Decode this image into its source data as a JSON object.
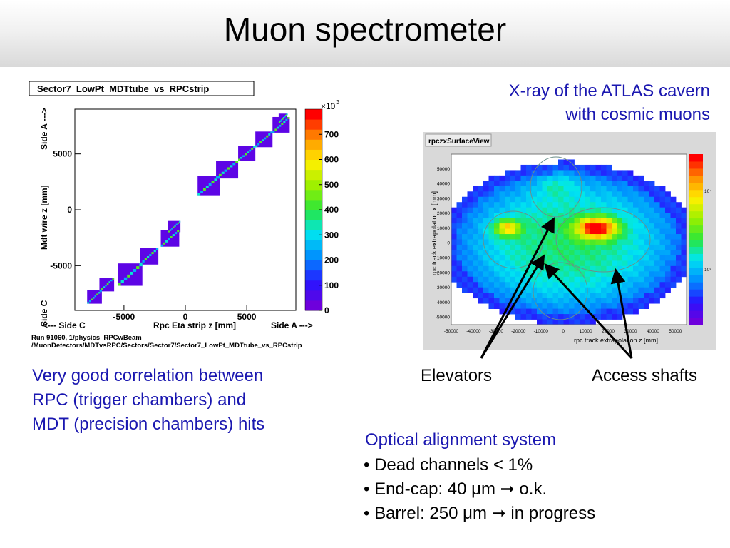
{
  "slide": {
    "title": "Muon spectrometer",
    "xray_caption": [
      "X-ray of the ATLAS cavern",
      "with cosmic muons"
    ],
    "correlation_text": [
      "Very good correlation between",
      "RPC (trigger chambers) and",
      "MDT (precision chambers) hits"
    ],
    "label_elevators": "Elevators",
    "label_access_shafts": "Access shafts",
    "optical_title": "Optical alignment system",
    "bullets": [
      {
        "text": "• Dead channels < 1%"
      },
      {
        "text": "• End-cap: 40 μm",
        "arrow": "➞",
        "after": " o.k."
      },
      {
        "text": "• Barrel: 250 μm",
        "arrow": "➞",
        "after": " in progress"
      }
    ]
  },
  "chart_data": [
    {
      "type": "heatmap",
      "title": "Sector7_LowPt_MDTtube_vs_RPCstrip",
      "xlabel": "Rpc Eta strip z [mm]",
      "ylabel": "Mdt wire z [mm]",
      "x_side_left": "<--- Side C",
      "x_side_right": "Side A --->",
      "y_side_top": "Side A --->",
      "y_side_bottom": "Side C",
      "x_ticks": [
        "-5000",
        "0",
        "5000"
      ],
      "x_tick_values": [
        -5000,
        0,
        5000
      ],
      "y_ticks": [
        "5000",
        "0",
        "-5000"
      ],
      "y_tick_values": [
        5000,
        0,
        -5000
      ],
      "xlim": [
        -9000,
        9000
      ],
      "ylim": [
        -9000,
        9000
      ],
      "colorbar_ticks": [
        "0",
        "100",
        "200",
        "300",
        "400",
        "500",
        "600",
        "700"
      ],
      "colorbar_values": [
        0,
        100,
        200,
        300,
        400,
        500,
        600,
        700
      ],
      "colorbar_max": 800,
      "colorbar_multiplier": "×10",
      "colorbar_exponent": "3",
      "footer": [
        "Run 91060, 1/physics_RPCwBeam",
        "/MuonDetectors/MDTvsRPC/Sectors/Sector7/Sector7_LowPt_MDTtube_vs_RPCstrip"
      ],
      "blocks": [
        {
          "x": [
            -8000,
            -6800
          ],
          "y": [
            -8400,
            -7200
          ]
        },
        {
          "x": [
            -7000,
            -5800
          ],
          "y": [
            -7300,
            -6100
          ]
        },
        {
          "x": [
            -5500,
            -3500
          ],
          "y": [
            -6800,
            -4800
          ]
        },
        {
          "x": [
            -3700,
            -2200
          ],
          "y": [
            -4900,
            -3400
          ]
        },
        {
          "x": [
            -2000,
            -500
          ],
          "y": [
            -3300,
            -1800
          ]
        },
        {
          "x": [
            -1400,
            -400
          ],
          "y": [
            -2000,
            -1000
          ]
        },
        {
          "x": [
            1000,
            2800
          ],
          "y": [
            1300,
            3000
          ]
        },
        {
          "x": [
            2500,
            4300
          ],
          "y": [
            2800,
            4400
          ]
        },
        {
          "x": [
            4300,
            5700
          ],
          "y": [
            4400,
            5700
          ]
        },
        {
          "x": [
            5700,
            7100
          ],
          "y": [
            5600,
            7000
          ]
        },
        {
          "x": [
            7100,
            8500
          ],
          "y": [
            6900,
            8300
          ]
        },
        {
          "x": [
            7600,
            8300
          ],
          "y": [
            7800,
            8600
          ]
        }
      ]
    },
    {
      "type": "heatmap",
      "title": "rpczxSurfaceView",
      "xlabel": "rpc track extrapolation z [mm]",
      "ylabel": "rpc track extrapolation x [mm]",
      "x_ticks": [
        "-50000",
        "-40000",
        "-30000",
        "-20000",
        "-10000",
        "0",
        "10000",
        "20000",
        "30000",
        "40000",
        "50000"
      ],
      "x_tick_values": [
        -50000,
        -40000,
        -30000,
        -20000,
        -10000,
        0,
        10000,
        20000,
        30000,
        40000,
        50000
      ],
      "y_ticks": [
        "50000",
        "40000",
        "30000",
        "20000",
        "10000",
        "0",
        "-10000",
        "-20000",
        "-30000",
        "-40000",
        "-50000"
      ],
      "y_tick_values": [
        50000,
        40000,
        30000,
        20000,
        10000,
        0,
        -10000,
        -20000,
        -30000,
        -40000,
        -50000
      ],
      "xlim": [
        -50000,
        55000
      ],
      "ylim": [
        -55000,
        60000
      ],
      "colorbar_ticks": [
        "10³",
        "10⁴"
      ],
      "hotspots": [
        {
          "name": "Access shafts",
          "z": 15000,
          "x": 10000
        },
        {
          "name": "Elevators",
          "z": -25000,
          "x": 10000
        }
      ]
    }
  ]
}
